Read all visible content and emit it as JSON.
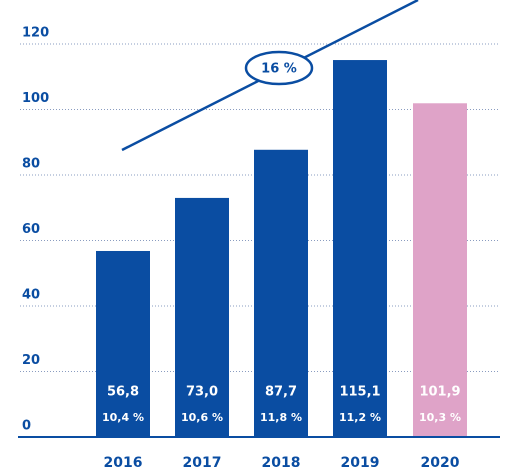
{
  "chart_data": {
    "type": "bar",
    "categories": [
      "2016",
      "2017",
      "2018",
      "2019",
      "2020"
    ],
    "values": [
      56.8,
      73.0,
      87.7,
      115.1,
      101.9
    ],
    "value_labels": [
      "56,8",
      "73,0",
      "87,7",
      "115,1",
      "101,9"
    ],
    "percent_labels": [
      "10,4 %",
      "10,6 %",
      "11,8 %",
      "11,2 %",
      "10,3 %"
    ],
    "colors": [
      "#0a4da2",
      "#0a4da2",
      "#0a4da2",
      "#0a4da2",
      "#dfa3c8"
    ],
    "annotation": "16 %",
    "ylim": [
      0,
      120
    ],
    "yticks": [
      0,
      20,
      40,
      60,
      80,
      100,
      120
    ],
    "grid": true
  }
}
